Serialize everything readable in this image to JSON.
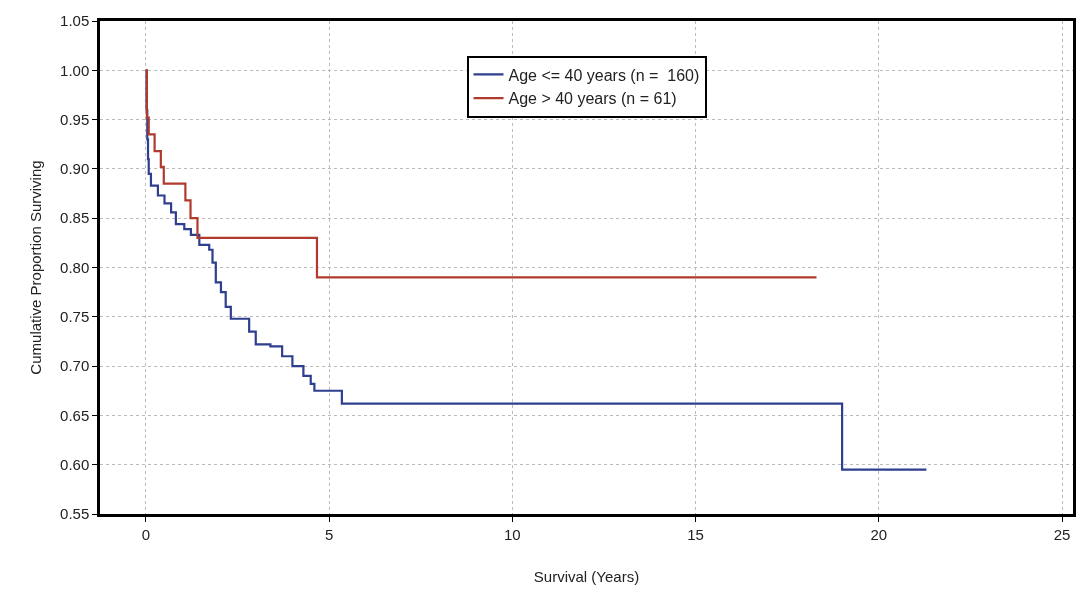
{
  "chart_data": {
    "type": "step",
    "xlabel": "Survival (Years)",
    "ylabel": "Cumulative Proportion Surviving",
    "xlim": [
      -1.25,
      25.3
    ],
    "xticks": [
      0,
      5,
      10,
      15,
      20,
      25
    ],
    "ylim": [
      0.55,
      1.05
    ],
    "yticks": [
      {
        "value": 0.55,
        "label": "0.55"
      },
      {
        "value": 0.6,
        "label": "0.60"
      },
      {
        "value": 0.65,
        "label": "0.65"
      },
      {
        "value": 0.7,
        "label": "0.70"
      },
      {
        "value": 0.75,
        "label": "0.75"
      },
      {
        "value": 0.8,
        "label": "0.80"
      },
      {
        "value": 0.85,
        "label": "0.85"
      },
      {
        "value": 0.9,
        "label": "0.90"
      },
      {
        "value": 0.95,
        "label": "0.95"
      },
      {
        "value": 1.0,
        "label": "1.00"
      },
      {
        "value": 1.05,
        "label": "1.05"
      }
    ],
    "grid": true,
    "legend": "top",
    "marker": "none",
    "line_style": "solid",
    "series": [
      {
        "name": "Age <= 40 years (n =  160)",
        "color": "#2e3f8f",
        "x": [
          0,
          0.02,
          0.04,
          0.06,
          0.08,
          0.14,
          0.33,
          0.51,
          0.69,
          0.82,
          1.05,
          1.23,
          1.46,
          1.73,
          1.82,
          1.91,
          2.05,
          2.18,
          2.32,
          2.82,
          3.0,
          3.4,
          3.72,
          4.0,
          4.3,
          4.5,
          4.6,
          5.35,
          19.0,
          21.3
        ],
        "values": [
          1.0,
          0.96,
          0.93,
          0.91,
          0.895,
          0.883,
          0.873,
          0.865,
          0.856,
          0.844,
          0.839,
          0.833,
          0.823,
          0.818,
          0.805,
          0.785,
          0.775,
          0.76,
          0.748,
          0.735,
          0.722,
          0.72,
          0.71,
          0.7,
          0.69,
          0.682,
          0.675,
          0.662,
          0.595,
          0.595
        ]
      },
      {
        "name": "Age > 40 years (n = 61)",
        "color": "#b03a2e",
        "x": [
          0,
          0.03,
          0.08,
          0.24,
          0.41,
          0.49,
          1.08,
          1.22,
          1.41,
          4.67,
          18.3
        ],
        "values": [
          1.0,
          0.952,
          0.935,
          0.918,
          0.902,
          0.885,
          0.868,
          0.85,
          0.83,
          0.79,
          0.79
        ]
      }
    ]
  }
}
